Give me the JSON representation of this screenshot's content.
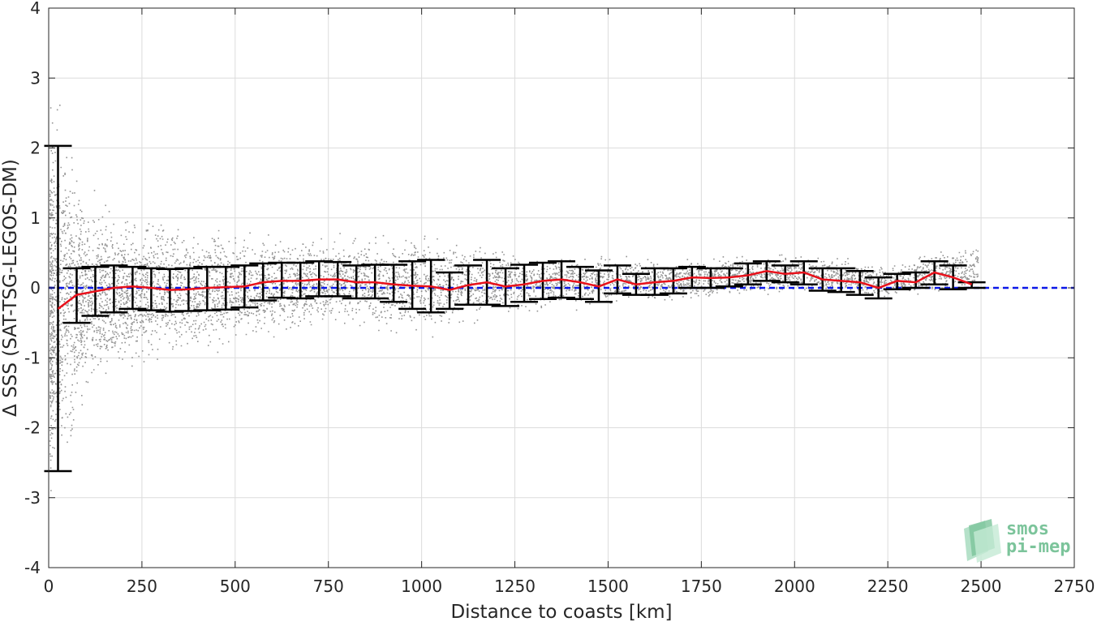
{
  "chart_data": {
    "type": "scatter",
    "title": "",
    "xlabel": "Distance to coasts [km]",
    "ylabel": "Δ SSS (SAT-TSG-LEGOS-DM)",
    "xlim": [
      0,
      2750
    ],
    "ylim": [
      -4,
      4
    ],
    "x_ticks": [
      0,
      250,
      500,
      750,
      1000,
      1250,
      1500,
      1750,
      2000,
      2250,
      2500,
      2750
    ],
    "y_ticks": [
      -4,
      -3,
      -2,
      -1,
      0,
      1,
      2,
      3,
      4
    ],
    "x_tick_labels": [
      "0",
      "250",
      "500",
      "750",
      "1000",
      "1250",
      "1500",
      "1750",
      "2000",
      "2250",
      "2500",
      "2750"
    ],
    "y_tick_labels": [
      "-4",
      "-3",
      "-2",
      "-1",
      "0",
      "1",
      "2",
      "3",
      "4"
    ],
    "grid": true,
    "colors": {
      "scatter": "#808080",
      "mean_line": "#e8111b",
      "error_bars": "#000000",
      "zero_line": "#0a17e8",
      "grid": "#dcdcdc"
    },
    "zero_line": {
      "y": 0,
      "style": "dashed"
    },
    "binned_stats": [
      {
        "x": 25,
        "mean": -0.3,
        "lo": -2.62,
        "hi": 2.03
      },
      {
        "x": 75,
        "mean": -0.1,
        "lo": -0.5,
        "hi": 0.28
      },
      {
        "x": 125,
        "mean": -0.05,
        "lo": -0.4,
        "hi": 0.3
      },
      {
        "x": 175,
        "mean": 0.0,
        "lo": -0.35,
        "hi": 0.32
      },
      {
        "x": 225,
        "mean": 0.02,
        "lo": -0.3,
        "hi": 0.3
      },
      {
        "x": 275,
        "mean": 0.0,
        "lo": -0.32,
        "hi": 0.28
      },
      {
        "x": 325,
        "mean": -0.03,
        "lo": -0.34,
        "hi": 0.27
      },
      {
        "x": 375,
        "mean": -0.02,
        "lo": -0.33,
        "hi": 0.28
      },
      {
        "x": 425,
        "mean": 0.0,
        "lo": -0.32,
        "hi": 0.3
      },
      {
        "x": 475,
        "mean": 0.01,
        "lo": -0.31,
        "hi": 0.3
      },
      {
        "x": 525,
        "mean": 0.02,
        "lo": -0.28,
        "hi": 0.32
      },
      {
        "x": 575,
        "mean": 0.08,
        "lo": -0.18,
        "hi": 0.35
      },
      {
        "x": 625,
        "mean": 0.1,
        "lo": -0.14,
        "hi": 0.36
      },
      {
        "x": 675,
        "mean": 0.1,
        "lo": -0.15,
        "hi": 0.36
      },
      {
        "x": 725,
        "mean": 0.12,
        "lo": -0.12,
        "hi": 0.38
      },
      {
        "x": 775,
        "mean": 0.12,
        "lo": -0.12,
        "hi": 0.37
      },
      {
        "x": 825,
        "mean": 0.08,
        "lo": -0.15,
        "hi": 0.32
      },
      {
        "x": 875,
        "mean": 0.08,
        "lo": -0.15,
        "hi": 0.33
      },
      {
        "x": 925,
        "mean": 0.05,
        "lo": -0.2,
        "hi": 0.33
      },
      {
        "x": 975,
        "mean": 0.03,
        "lo": -0.3,
        "hi": 0.38
      },
      {
        "x": 1025,
        "mean": 0.02,
        "lo": -0.35,
        "hi": 0.4
      },
      {
        "x": 1075,
        "mean": -0.03,
        "lo": -0.3,
        "hi": 0.22
      },
      {
        "x": 1125,
        "mean": 0.04,
        "lo": -0.24,
        "hi": 0.32
      },
      {
        "x": 1175,
        "mean": 0.08,
        "lo": -0.24,
        "hi": 0.4
      },
      {
        "x": 1225,
        "mean": 0.02,
        "lo": -0.26,
        "hi": 0.28
      },
      {
        "x": 1275,
        "mean": 0.05,
        "lo": -0.2,
        "hi": 0.33
      },
      {
        "x": 1325,
        "mean": 0.1,
        "lo": -0.16,
        "hi": 0.36
      },
      {
        "x": 1375,
        "mean": 0.12,
        "lo": -0.14,
        "hi": 0.38
      },
      {
        "x": 1425,
        "mean": 0.08,
        "lo": -0.16,
        "hi": 0.3
      },
      {
        "x": 1475,
        "mean": 0.02,
        "lo": -0.2,
        "hi": 0.25
      },
      {
        "x": 1525,
        "mean": 0.12,
        "lo": -0.08,
        "hi": 0.32
      },
      {
        "x": 1575,
        "mean": 0.05,
        "lo": -0.1,
        "hi": 0.2
      },
      {
        "x": 1625,
        "mean": 0.08,
        "lo": -0.1,
        "hi": 0.28
      },
      {
        "x": 1675,
        "mean": 0.1,
        "lo": -0.08,
        "hi": 0.28
      },
      {
        "x": 1725,
        "mean": 0.15,
        "lo": 0.0,
        "hi": 0.3
      },
      {
        "x": 1775,
        "mean": 0.14,
        "lo": 0.0,
        "hi": 0.28
      },
      {
        "x": 1825,
        "mean": 0.15,
        "lo": 0.02,
        "hi": 0.28
      },
      {
        "x": 1875,
        "mean": 0.18,
        "lo": 0.05,
        "hi": 0.35
      },
      {
        "x": 1925,
        "mean": 0.24,
        "lo": 0.1,
        "hi": 0.38
      },
      {
        "x": 1975,
        "mean": 0.2,
        "lo": 0.08,
        "hi": 0.32
      },
      {
        "x": 2025,
        "mean": 0.22,
        "lo": 0.05,
        "hi": 0.38
      },
      {
        "x": 2075,
        "mean": 0.12,
        "lo": -0.04,
        "hi": 0.28
      },
      {
        "x": 2125,
        "mean": 0.1,
        "lo": -0.06,
        "hi": 0.28
      },
      {
        "x": 2175,
        "mean": 0.08,
        "lo": -0.1,
        "hi": 0.24
      },
      {
        "x": 2225,
        "mean": 0.0,
        "lo": -0.15,
        "hi": 0.15
      },
      {
        "x": 2275,
        "mean": 0.1,
        "lo": -0.02,
        "hi": 0.2
      },
      {
        "x": 2325,
        "mean": 0.08,
        "lo": 0.0,
        "hi": 0.22
      },
      {
        "x": 2375,
        "mean": 0.22,
        "lo": 0.05,
        "hi": 0.38
      },
      {
        "x": 2425,
        "mean": 0.15,
        "lo": -0.02,
        "hi": 0.32
      },
      {
        "x": 2475,
        "mean": 0.05,
        "lo": 0.0,
        "hi": 0.08
      }
    ],
    "scatter_envelope": [
      {
        "x": 25,
        "lo": -3.4,
        "hi": 3.0
      },
      {
        "x": 100,
        "lo": -1.8,
        "hi": 1.5
      },
      {
        "x": 250,
        "lo": -1.3,
        "hi": 1.2
      },
      {
        "x": 500,
        "lo": -0.9,
        "hi": 0.9
      },
      {
        "x": 750,
        "lo": -0.6,
        "hi": 0.8
      },
      {
        "x": 1000,
        "lo": -0.8,
        "hi": 0.9
      },
      {
        "x": 1250,
        "lo": -0.4,
        "hi": 0.6
      },
      {
        "x": 1500,
        "lo": -0.3,
        "hi": 0.5
      },
      {
        "x": 1750,
        "lo": -0.2,
        "hi": 0.5
      },
      {
        "x": 2000,
        "lo": -0.1,
        "hi": 0.55
      },
      {
        "x": 2250,
        "lo": -0.2,
        "hi": 0.4
      },
      {
        "x": 2475,
        "lo": -0.1,
        "hi": 0.7
      }
    ]
  },
  "logo": {
    "text_line1": "smos",
    "text_line2": "pi-mep"
  }
}
